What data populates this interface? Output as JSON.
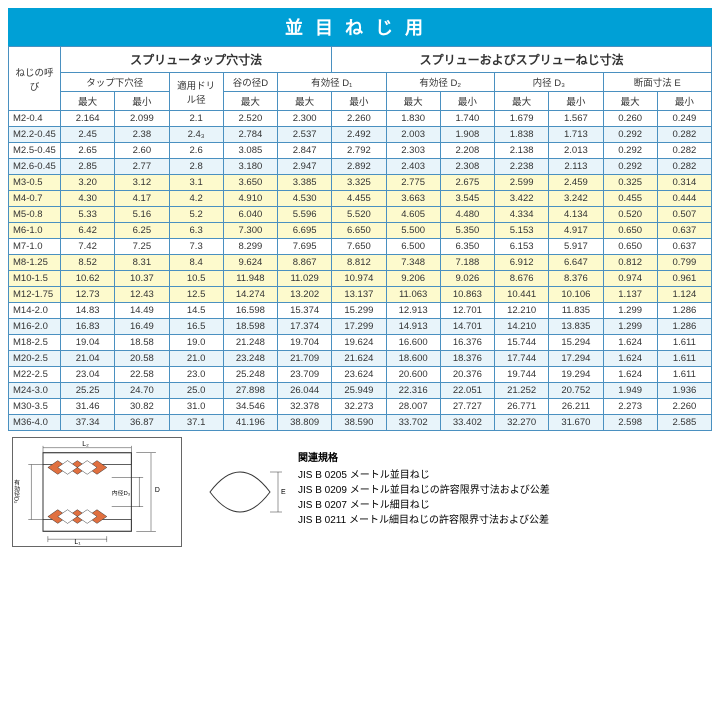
{
  "title": "並目ねじ用",
  "headers": {
    "left_section": "スプリュータップ穴寸法",
    "right_section": "スプリューおよびスプリューねじ寸法",
    "thread_label": "ねじの呼び",
    "tap_hole": "タップ下穴径",
    "drill": "適用ドリル径",
    "valley": "谷の径D",
    "eff_d1": "有効径 D₁",
    "eff_d2": "有効径 D₂",
    "inner_d3": "内径 D₃",
    "section_e": "断面寸法 E",
    "max": "最大",
    "min": "最小"
  },
  "rows": [
    {
      "name": "M2-0.4",
      "vals": [
        "2.164",
        "2.099",
        "2.1",
        "2.520",
        "2.300",
        "2.260",
        "1.830",
        "1.740",
        "1.679",
        "1.567",
        "0.260",
        "0.249"
      ],
      "cls": ""
    },
    {
      "name": "M2.2-0.45",
      "vals": [
        "2.45",
        "2.38",
        "2.4₃",
        "2.784",
        "2.537",
        "2.492",
        "2.003",
        "1.908",
        "1.838",
        "1.713",
        "0.292",
        "0.282"
      ],
      "cls": "row-band"
    },
    {
      "name": "M2.5-0.45",
      "vals": [
        "2.65",
        "2.60",
        "2.6",
        "3.085",
        "2.847",
        "2.792",
        "2.303",
        "2.208",
        "2.138",
        "2.013",
        "0.292",
        "0.282"
      ],
      "cls": ""
    },
    {
      "name": "M2.6-0.45",
      "vals": [
        "2.85",
        "2.77",
        "2.8",
        "3.180",
        "2.947",
        "2.892",
        "2.403",
        "2.308",
        "2.238",
        "2.113",
        "0.292",
        "0.282"
      ],
      "cls": "row-band"
    },
    {
      "name": "M3-0.5",
      "vals": [
        "3.20",
        "3.12",
        "3.1",
        "3.650",
        "3.385",
        "3.325",
        "2.775",
        "2.675",
        "2.599",
        "2.459",
        "0.325",
        "0.314"
      ],
      "cls": "row-yellow"
    },
    {
      "name": "M4-0.7",
      "vals": [
        "4.30",
        "4.17",
        "4.2",
        "4.910",
        "4.530",
        "4.455",
        "3.663",
        "3.545",
        "3.422",
        "3.242",
        "0.455",
        "0.444"
      ],
      "cls": "row-yellow"
    },
    {
      "name": "M5-0.8",
      "vals": [
        "5.33",
        "5.16",
        "5.2",
        "6.040",
        "5.596",
        "5.520",
        "4.605",
        "4.480",
        "4.334",
        "4.134",
        "0.520",
        "0.507"
      ],
      "cls": "row-yellow"
    },
    {
      "name": "M6-1.0",
      "vals": [
        "6.42",
        "6.25",
        "6.3",
        "7.300",
        "6.695",
        "6.650",
        "5.500",
        "5.350",
        "5.153",
        "4.917",
        "0.650",
        "0.637"
      ],
      "cls": "row-yellow"
    },
    {
      "name": "M7-1.0",
      "vals": [
        "7.42",
        "7.25",
        "7.3",
        "8.299",
        "7.695",
        "7.650",
        "6.500",
        "6.350",
        "6.153",
        "5.917",
        "0.650",
        "0.637"
      ],
      "cls": ""
    },
    {
      "name": "M8-1.25",
      "vals": [
        "8.52",
        "8.31",
        "8.4",
        "9.624",
        "8.867",
        "8.812",
        "7.348",
        "7.188",
        "6.912",
        "6.647",
        "0.812",
        "0.799"
      ],
      "cls": "row-yellow"
    },
    {
      "name": "M10-1.5",
      "vals": [
        "10.62",
        "10.37",
        "10.5",
        "11.948",
        "11.029",
        "10.974",
        "9.206",
        "9.026",
        "8.676",
        "8.376",
        "0.974",
        "0.961"
      ],
      "cls": "row-yellow"
    },
    {
      "name": "M12-1.75",
      "vals": [
        "12.73",
        "12.43",
        "12.5",
        "14.274",
        "13.202",
        "13.137",
        "11.063",
        "10.863",
        "10.441",
        "10.106",
        "1.137",
        "1.124"
      ],
      "cls": "row-yellow"
    },
    {
      "name": "M14-2.0",
      "vals": [
        "14.83",
        "14.49",
        "14.5",
        "16.598",
        "15.374",
        "15.299",
        "12.913",
        "12.701",
        "12.210",
        "11.835",
        "1.299",
        "1.286"
      ],
      "cls": ""
    },
    {
      "name": "M16-2.0",
      "vals": [
        "16.83",
        "16.49",
        "16.5",
        "18.598",
        "17.374",
        "17.299",
        "14.913",
        "14.701",
        "14.210",
        "13.835",
        "1.299",
        "1.286"
      ],
      "cls": "row-band"
    },
    {
      "name": "M18-2.5",
      "vals": [
        "19.04",
        "18.58",
        "19.0",
        "21.248",
        "19.704",
        "19.624",
        "16.600",
        "16.376",
        "15.744",
        "15.294",
        "1.624",
        "1.611"
      ],
      "cls": ""
    },
    {
      "name": "M20-2.5",
      "vals": [
        "21.04",
        "20.58",
        "21.0",
        "23.248",
        "21.709",
        "21.624",
        "18.600",
        "18.376",
        "17.744",
        "17.294",
        "1.624",
        "1.611"
      ],
      "cls": "row-band"
    },
    {
      "name": "M22-2.5",
      "vals": [
        "23.04",
        "22.58",
        "23.0",
        "25.248",
        "23.709",
        "23.624",
        "20.600",
        "20.376",
        "19.744",
        "19.294",
        "1.624",
        "1.611"
      ],
      "cls": ""
    },
    {
      "name": "M24-3.0",
      "vals": [
        "25.25",
        "24.70",
        "25.0",
        "27.898",
        "26.044",
        "25.949",
        "22.316",
        "22.051",
        "21.252",
        "20.752",
        "1.949",
        "1.936"
      ],
      "cls": "row-band"
    },
    {
      "name": "M30-3.5",
      "vals": [
        "31.46",
        "30.82",
        "31.0",
        "34.546",
        "32.378",
        "32.273",
        "28.007",
        "27.727",
        "26.771",
        "26.211",
        "2.273",
        "2.260"
      ],
      "cls": ""
    },
    {
      "name": "M36-4.0",
      "vals": [
        "37.34",
        "36.87",
        "37.1",
        "41.196",
        "38.809",
        "38.590",
        "33.702",
        "33.402",
        "32.270",
        "31.670",
        "2.598",
        "2.585"
      ],
      "cls": "row-band"
    }
  ],
  "refs": {
    "title": "関連規格",
    "items": [
      "JIS  B  0205  メートル並目ねじ",
      "JIS  B  0209  メートル並目ねじの許容限界寸法および公差",
      "JIS  B  0207  メートル細目ねじ",
      "JIS  B  0211  メートル細目ねじの許容限界寸法および公差"
    ]
  },
  "diagram": {
    "labels": {
      "L2": "L₂",
      "L1": "L₁",
      "D": "D",
      "D3": "内径D₃",
      "eff": "有効径D₂"
    }
  },
  "colors": {
    "border": "#4a90c0",
    "title_bg": "#00a0d6",
    "band": "#e8f4fa",
    "yellow": "#fdfacd"
  }
}
